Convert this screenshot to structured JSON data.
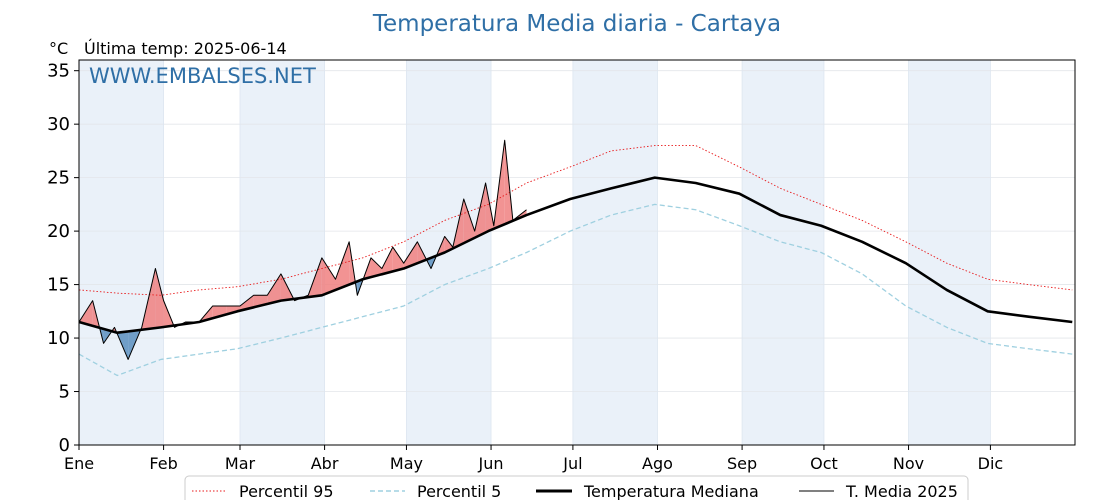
{
  "chart_data": {
    "type": "line",
    "title": "Temperatura Media diaria - Cartaya",
    "unit_label": "°C",
    "last_temp": "Última temp: 2025-06-14",
    "watermark": "WWW.EMBALSES.NET",
    "ylim": [
      0,
      36
    ],
    "yticks": [
      0,
      5,
      10,
      15,
      20,
      25,
      30,
      35
    ],
    "xlim": [
      1,
      366
    ],
    "months": [
      "Ene",
      "Feb",
      "Mar",
      "Abr",
      "May",
      "Jun",
      "Jul",
      "Ago",
      "Sep",
      "Oct",
      "Nov",
      "Dic"
    ],
    "month_start_day": [
      1,
      32,
      60,
      91,
      121,
      152,
      182,
      213,
      244,
      274,
      305,
      335
    ],
    "shaded_months": [
      0,
      2,
      4,
      6,
      8,
      10
    ],
    "grid": true,
    "legend_position": "bottom",
    "colors": {
      "title": "#2f6fa6",
      "p95": "#e8191b",
      "p5": "#9fd0e0",
      "median": "#000000",
      "current": "#000000",
      "above_fill": "#f08080",
      "below_fill": "#5a8fc0",
      "month_band": "#eaf1f9"
    },
    "series": [
      {
        "name": "Percentil 95",
        "key": "p95",
        "style": "dotted",
        "days": [
          1,
          15,
          31,
          45,
          59,
          75,
          90,
          105,
          120,
          135,
          151,
          165,
          181,
          196,
          212,
          227,
          243,
          258,
          273,
          288,
          304,
          319,
          334,
          349,
          365
        ],
        "values": [
          14.5,
          14.2,
          14.0,
          14.5,
          14.8,
          15.5,
          16.5,
          17.5,
          19.0,
          21.0,
          22.5,
          24.5,
          26.0,
          27.5,
          28.0,
          28.0,
          26.0,
          24.0,
          22.5,
          21.0,
          19.0,
          17.0,
          15.5,
          15.0,
          14.5
        ]
      },
      {
        "name": "Percentil 5",
        "key": "p5",
        "style": "dashed",
        "days": [
          1,
          15,
          31,
          45,
          59,
          75,
          90,
          105,
          120,
          135,
          151,
          165,
          181,
          196,
          212,
          227,
          243,
          258,
          273,
          288,
          304,
          319,
          334,
          349,
          365
        ],
        "values": [
          8.5,
          6.5,
          8.0,
          8.5,
          9.0,
          10.0,
          11.0,
          12.0,
          13.0,
          15.0,
          16.5,
          18.0,
          20.0,
          21.5,
          22.5,
          22.0,
          20.5,
          19.0,
          18.0,
          16.0,
          13.0,
          11.0,
          9.5,
          9.0,
          8.5
        ]
      },
      {
        "name": "Temperatura Mediana",
        "key": "median",
        "style": "thick",
        "days": [
          1,
          15,
          31,
          45,
          59,
          75,
          90,
          105,
          120,
          135,
          151,
          165,
          181,
          196,
          212,
          227,
          243,
          258,
          273,
          288,
          304,
          319,
          334,
          349,
          365
        ],
        "values": [
          11.5,
          10.5,
          11.0,
          11.5,
          12.5,
          13.5,
          14.0,
          15.5,
          16.5,
          18.0,
          20.0,
          21.5,
          23.0,
          24.0,
          25.0,
          24.5,
          23.5,
          21.5,
          20.5,
          19.0,
          17.0,
          14.5,
          12.5,
          12.0,
          11.5
        ]
      },
      {
        "name": "T. Media 2025",
        "key": "current",
        "style": "thin",
        "days": [
          1,
          6,
          10,
          14,
          19,
          24,
          29,
          32,
          36,
          40,
          45,
          50,
          55,
          60,
          65,
          70,
          75,
          80,
          85,
          90,
          95,
          100,
          103,
          108,
          112,
          116,
          120,
          125,
          130,
          135,
          138,
          142,
          146,
          150,
          153,
          157,
          160,
          165
        ],
        "values": [
          11.5,
          13.5,
          9.5,
          11.0,
          8.0,
          11.0,
          16.5,
          13.5,
          11.0,
          11.5,
          11.5,
          13.0,
          13.0,
          13.0,
          14.0,
          14.0,
          16.0,
          13.5,
          14.0,
          17.5,
          15.5,
          19.0,
          14.0,
          17.5,
          16.5,
          18.5,
          17.0,
          19.0,
          16.5,
          19.5,
          18.5,
          23.0,
          20.0,
          24.5,
          20.5,
          28.5,
          21.0,
          22.0
        ]
      }
    ]
  }
}
